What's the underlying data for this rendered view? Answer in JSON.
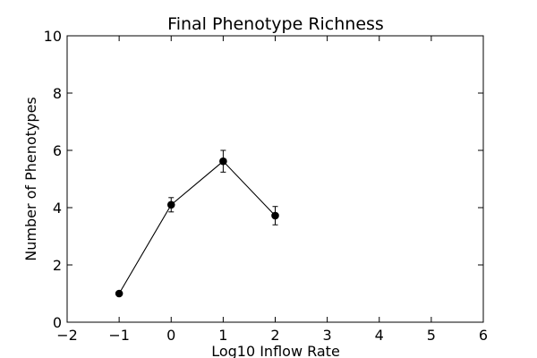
{
  "chart_data": {
    "type": "line",
    "title": "Final Phenotype Richness",
    "xlabel": "Log10 Inflow Rate",
    "ylabel": "Number of Phenotypes",
    "xlim": [
      -2,
      6
    ],
    "ylim": [
      0,
      10
    ],
    "xticks": [
      -2,
      -1,
      0,
      1,
      2,
      3,
      4,
      5,
      6
    ],
    "yticks": [
      0,
      2,
      4,
      6,
      8,
      10
    ],
    "xtick_labels": [
      "−2",
      "−1",
      "0",
      "1",
      "2",
      "3",
      "4",
      "5",
      "6"
    ],
    "ytick_labels": [
      "0",
      "2",
      "4",
      "6",
      "8",
      "10"
    ],
    "grid": false,
    "legend": false,
    "series": [
      {
        "x": [
          -1,
          0,
          1,
          2
        ],
        "y": [
          1.0,
          4.1,
          5.62,
          3.72
        ],
        "yerr": [
          0.0,
          0.25,
          0.38,
          0.32
        ],
        "color": "#000000",
        "marker": "circle"
      }
    ]
  }
}
